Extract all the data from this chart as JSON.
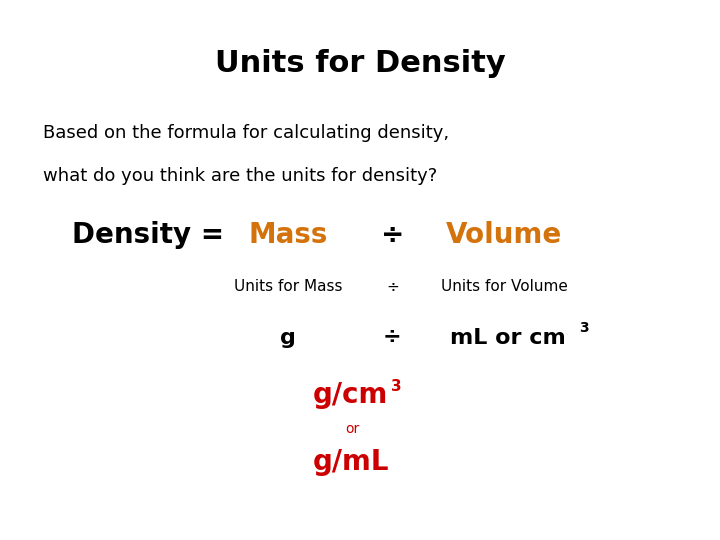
{
  "title": "Units for Density",
  "subtitle_line1": "Based on the formula for calculating density,",
  "subtitle_line2": "what do you think are the units for density?",
  "density_label": "Density = ",
  "mass_label": "Mass",
  "div_symbol": "÷",
  "volume_label": "Volume",
  "units_mass": "Units for Mass",
  "units_volume": "Units for Volume",
  "g_label": "g",
  "ml_cm3_label": "mL or cm",
  "result1": "g/cm",
  "or_label": "or",
  "result2": "g/mL",
  "bg_color": "#ffffff",
  "title_color": "#000000",
  "body_color": "#000000",
  "orange_color": "#d4720c",
  "red_color": "#cc0000",
  "title_fontsize": 22,
  "subtitle_fontsize": 13,
  "formula_fontsize": 20,
  "sub_formula_fontsize": 11,
  "units_fontsize": 16,
  "result_fontsize": 20,
  "super_fontsize": 10
}
